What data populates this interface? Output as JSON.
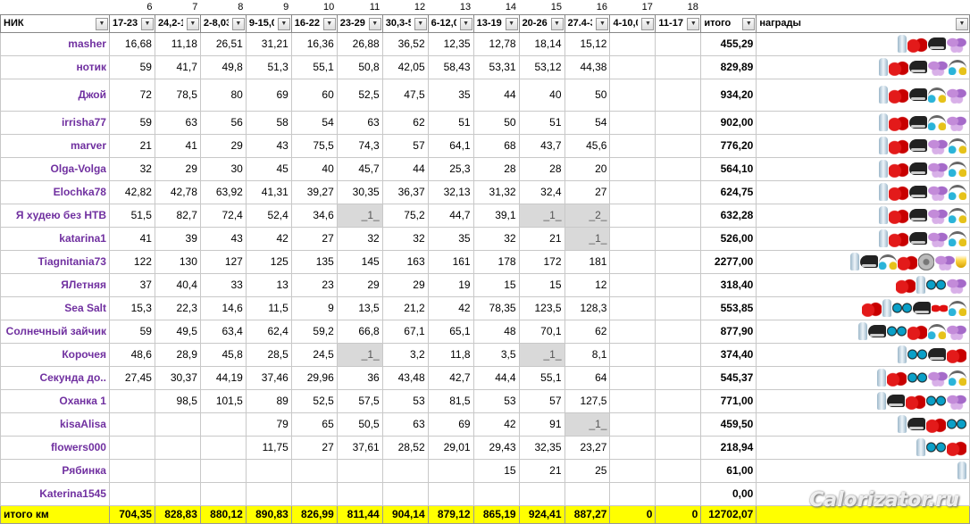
{
  "col_numbers": [
    "",
    "6",
    "7",
    "8",
    "9",
    "10",
    "11",
    "12",
    "13",
    "14",
    "15",
    "16",
    "17",
    "18",
    "",
    ""
  ],
  "header": {
    "nick": "НИК",
    "weeks": [
      "17-23.",
      "24,2-1.",
      "2-8,03",
      "9-15,0",
      "16-22,",
      "23-29,",
      "30,3-5",
      "6-12,0",
      "13-19.",
      "20-26.",
      "27.4-3",
      "4-10,0",
      "11-17,"
    ],
    "total": "итого",
    "awards": "награды"
  },
  "rows": [
    {
      "nick": "masher",
      "values": [
        "16,68",
        "11,18",
        "26,51",
        "31,21",
        "16,36",
        "26,88",
        "36,52",
        "12,35",
        "12,78",
        "18,14",
        "15,12",
        "",
        ""
      ],
      "total": "455,29",
      "awards": [
        "bottle",
        "boots",
        "shoe",
        "butterfly"
      ]
    },
    {
      "nick": "нотик",
      "values": [
        "59",
        "41,7",
        "49,8",
        "51,3",
        "55,1",
        "50,8",
        "42,05",
        "58,43",
        "53,31",
        "53,12",
        "44,38",
        "",
        ""
      ],
      "total": "829,89",
      "awards": [
        "bottle",
        "boots",
        "shoe",
        "butterfly",
        "headphones"
      ]
    },
    {
      "nick": "Джой",
      "values": [
        "72",
        "78,5",
        "80",
        "69",
        "60",
        "52,5",
        "47,5",
        "35",
        "44",
        "40",
        "50",
        "",
        ""
      ],
      "total": "934,20",
      "awards": [
        "bottle",
        "boots",
        "shoe",
        "headphones",
        "butterfly"
      ]
    },
    {
      "nick": "irrisha77",
      "values": [
        "59",
        "63",
        "56",
        "58",
        "54",
        "63",
        "62",
        "51",
        "50",
        "51",
        "54",
        "",
        ""
      ],
      "total": "902,00",
      "awards": [
        "bottle",
        "boots",
        "shoe",
        "headphones",
        "butterfly"
      ]
    },
    {
      "nick": "marver",
      "values": [
        "21",
        "41",
        "29",
        "43",
        "75,5",
        "74,3",
        "57",
        "64,1",
        "68",
        "43,7",
        "45,6",
        "",
        ""
      ],
      "total": "776,20",
      "awards": [
        "bottle",
        "boots",
        "shoe",
        "butterfly",
        "headphones"
      ]
    },
    {
      "nick": "Olga-Volga",
      "values": [
        "32",
        "29",
        "30",
        "45",
        "40",
        "45,7",
        "44",
        "25,3",
        "28",
        "28",
        "20",
        "",
        ""
      ],
      "total": "564,10",
      "awards": [
        "bottle",
        "boots",
        "shoe",
        "butterfly",
        "headphones"
      ]
    },
    {
      "nick": "Elochka78",
      "values": [
        "42,82",
        "42,78",
        "63,92",
        "41,31",
        "39,27",
        "30,35",
        "36,37",
        "32,13",
        "31,32",
        "32,4",
        "27",
        "",
        ""
      ],
      "total": "624,75",
      "awards": [
        "bottle",
        "boots",
        "shoe",
        "butterfly",
        "headphones"
      ]
    },
    {
      "nick": "Я худею без НТВ",
      "values": [
        "51,5",
        "82,7",
        "72,4",
        "52,4",
        "34,6",
        "_1_",
        "75,2",
        "44,7",
        "39,1",
        "_1_",
        "_2_",
        "",
        ""
      ],
      "total": "632,28",
      "awards": [
        "bottle",
        "boots",
        "shoe",
        "butterfly",
        "headphones"
      ]
    },
    {
      "nick": "katarina1",
      "values": [
        "41",
        "39",
        "43",
        "42",
        "27",
        "32",
        "32",
        "35",
        "32",
        "21",
        "_1_",
        "",
        ""
      ],
      "total": "526,00",
      "awards": [
        "bottle",
        "boots",
        "shoe",
        "butterfly",
        "headphones"
      ]
    },
    {
      "nick": "Tiagnitania73",
      "values": [
        "122",
        "130",
        "127",
        "125",
        "135",
        "145",
        "163",
        "161",
        "178",
        "172",
        "181",
        "",
        ""
      ],
      "total": "2277,00",
      "awards": [
        "bottle",
        "shoe",
        "headphones",
        "boots",
        "fan",
        "butterfly",
        "cup"
      ]
    },
    {
      "nick": "ЯЛетняя",
      "values": [
        "37",
        "40,4",
        "33",
        "13",
        "23",
        "29",
        "29",
        "19",
        "15",
        "15",
        "12",
        "",
        ""
      ],
      "total": "318,40",
      "awards": [
        "boots",
        "bottle",
        "goggles",
        "butterfly"
      ]
    },
    {
      "nick": "Sea Salt",
      "values": [
        "15,3",
        "22,3",
        "14,6",
        "11,5",
        "9",
        "13,5",
        "21,2",
        "42",
        "78,35",
        "123,5",
        "128,3",
        "",
        ""
      ],
      "total": "553,85",
      "awards": [
        "boots",
        "bottle",
        "goggles",
        "shoe",
        "bow",
        "headphones"
      ]
    },
    {
      "nick": "Солнечный зайчик",
      "values": [
        "59",
        "49,5",
        "63,4",
        "62,4",
        "59,2",
        "66,8",
        "67,1",
        "65,1",
        "48",
        "70,1",
        "62",
        "",
        ""
      ],
      "total": "877,90",
      "awards": [
        "bottle",
        "shoe",
        "goggles",
        "boots",
        "headphones",
        "butterfly"
      ]
    },
    {
      "nick": "Корочея",
      "values": [
        "48,6",
        "28,9",
        "45,8",
        "28,5",
        "24,5",
        "_1_",
        "3,2",
        "11,8",
        "3,5",
        "_1_",
        "8,1",
        "",
        ""
      ],
      "total": "374,40",
      "awards": [
        "bottle",
        "goggles",
        "shoe",
        "boots"
      ]
    },
    {
      "nick": "Секунда до..",
      "values": [
        "27,45",
        "30,37",
        "44,19",
        "37,46",
        "29,96",
        "36",
        "43,48",
        "42,7",
        "44,4",
        "55,1",
        "64",
        "",
        ""
      ],
      "total": "545,37",
      "awards": [
        "bottle",
        "boots",
        "goggles",
        "butterfly",
        "headphones"
      ]
    },
    {
      "nick": "Оxанка 1",
      "values": [
        "",
        "98,5",
        "101,5",
        "89",
        "52,5",
        "57,5",
        "53",
        "81,5",
        "53",
        "57",
        "127,5",
        "",
        ""
      ],
      "total": "771,00",
      "awards": [
        "bottle",
        "shoe",
        "boots",
        "goggles",
        "butterfly"
      ]
    },
    {
      "nick": "kisaAlisa",
      "values": [
        "",
        "",
        "",
        "79",
        "65",
        "50,5",
        "63",
        "69",
        "42",
        "91",
        "_1_",
        "",
        ""
      ],
      "total": "459,50",
      "awards": [
        "bottle",
        "shoe",
        "boots",
        "goggles"
      ]
    },
    {
      "nick": "flowers000",
      "values": [
        "",
        "",
        "",
        "11,75",
        "27",
        "37,61",
        "28,52",
        "29,01",
        "29,43",
        "32,35",
        "23,27",
        "",
        ""
      ],
      "total": "218,94",
      "awards": [
        "bottle",
        "goggles",
        "boots"
      ]
    },
    {
      "nick": "Рябинка",
      "values": [
        "",
        "",
        "",
        "",
        "",
        "",
        "",
        "",
        "15",
        "21",
        "25",
        "",
        ""
      ],
      "total": "61,00",
      "awards": [
        "bottle"
      ]
    },
    {
      "nick": "Katerina1545",
      "values": [
        "",
        "",
        "",
        "",
        "",
        "",
        "",
        "",
        "",
        "",
        "",
        "",
        ""
      ],
      "total": "0,00",
      "awards": []
    }
  ],
  "footer": {
    "label": "итого км",
    "values": [
      "704,35",
      "828,83",
      "880,12",
      "890,83",
      "826,99",
      "811,44",
      "904,14",
      "879,12",
      "865,19",
      "924,41",
      "887,27",
      "0",
      "0"
    ],
    "total": "12702,07"
  },
  "watermark": "Calorizator.ru"
}
